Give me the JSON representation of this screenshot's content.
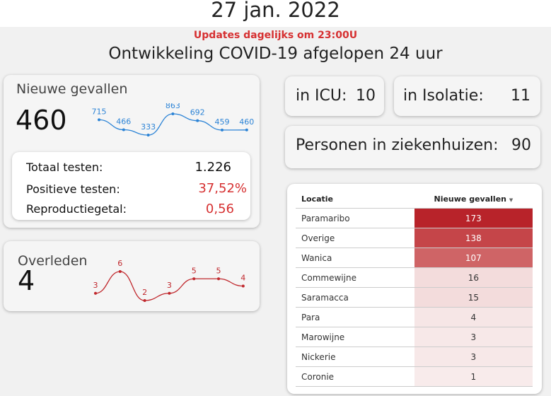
{
  "header": {
    "date": "27 jan. 2022",
    "updates": "Updates dagelijks om 23:00U",
    "subtitle": "Ontwikkeling COVID-19 afgelopen 24 uur"
  },
  "new_cases": {
    "title": "Nieuwe gevallen",
    "value": "460",
    "trend": [
      715,
      466,
      333,
      863,
      692,
      459,
      460
    ],
    "color": "#2d84d6"
  },
  "tests": {
    "total_label": "Totaal testen:",
    "total_value": "1.226",
    "positive_label": "Positieve testen:",
    "positive_value": "37,52%",
    "r_label": "Reproductiegetal:",
    "r_value": "0,56",
    "accent": "#d63031"
  },
  "deaths": {
    "title": "Overleden",
    "value": "4",
    "trend": [
      3,
      6,
      2,
      3,
      5,
      5,
      4
    ],
    "color": "#c0282d"
  },
  "icu": {
    "label": "in ICU:",
    "value": "10"
  },
  "isolation": {
    "label": "in Isolatie:",
    "value": "11"
  },
  "hospital": {
    "label": "Personen in ziekenhuizen:",
    "value": "90"
  },
  "table": {
    "col_location": "Locatie",
    "col_new_cases": "Nieuwe gevallen",
    "sort_icon": "sort-desc-icon",
    "rows": [
      {
        "loc": "Paramaribo",
        "val": 173,
        "bg": "#b8232a",
        "fg": "#ffffff"
      },
      {
        "loc": "Overige",
        "val": 138,
        "bg": "#c54549",
        "fg": "#ffffff"
      },
      {
        "loc": "Wanica",
        "val": 107,
        "bg": "#cf6466",
        "fg": "#ffffff"
      },
      {
        "loc": "Commewijne",
        "val": 16,
        "bg": "#f3dcdc",
        "fg": "#333333"
      },
      {
        "loc": "Saramacca",
        "val": 15,
        "bg": "#f3dcdc",
        "fg": "#333333"
      },
      {
        "loc": "Para",
        "val": 4,
        "bg": "#f6e6e6",
        "fg": "#333333"
      },
      {
        "loc": "Marowijne",
        "val": 3,
        "bg": "#f7e8e8",
        "fg": "#333333"
      },
      {
        "loc": "Nickerie",
        "val": 3,
        "bg": "#f7e8e8",
        "fg": "#333333"
      },
      {
        "loc": "Coronie",
        "val": 1,
        "bg": "#f8ebeb",
        "fg": "#333333"
      }
    ]
  }
}
